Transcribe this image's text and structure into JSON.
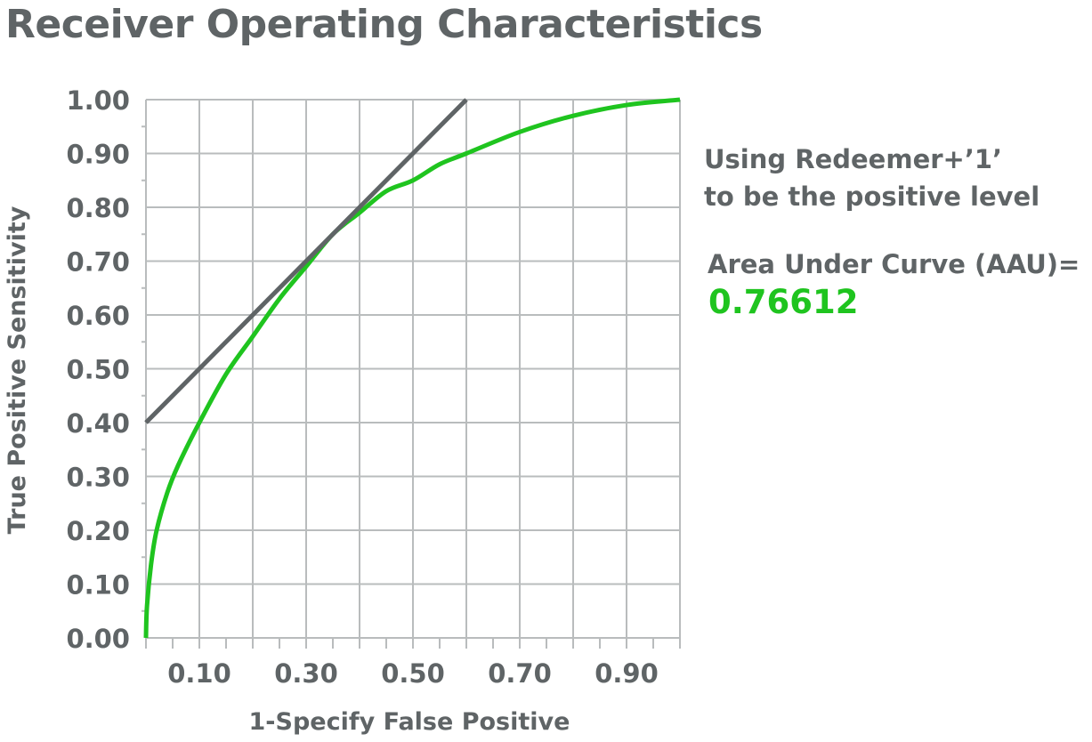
{
  "chart_data": {
    "type": "line",
    "title": "Receiver Operating Characteristics",
    "xlabel": "1-Specify False Positive",
    "ylabel": "True Positive Sensitivity",
    "xlim": [
      0,
      1
    ],
    "ylim": [
      0,
      1
    ],
    "grid": true,
    "x_ticks": [
      "0.10",
      "0.30",
      "0.50",
      "0.70",
      "0.90"
    ],
    "x_tick_values": [
      0.1,
      0.3,
      0.5,
      0.7,
      0.9
    ],
    "y_ticks": [
      "0.00",
      "0.10",
      "0.20",
      "0.30",
      "0.40",
      "0.50",
      "0.60",
      "0.70",
      "0.80",
      "0.90",
      "1.00"
    ],
    "y_tick_values": [
      0,
      0.1,
      0.2,
      0.3,
      0.4,
      0.5,
      0.6,
      0.7,
      0.8,
      0.9,
      1.0
    ],
    "series": [
      {
        "color": "#1fc41f",
        "x": [
          0,
          0.002,
          0.01,
          0.02,
          0.04,
          0.06,
          0.1,
          0.15,
          0.2,
          0.25,
          0.3,
          0.35,
          0.4,
          0.45,
          0.5,
          0.55,
          0.6,
          0.7,
          0.8,
          0.9,
          1.0
        ],
        "y": [
          0,
          0.06,
          0.14,
          0.2,
          0.27,
          0.32,
          0.4,
          0.49,
          0.56,
          0.63,
          0.69,
          0.75,
          0.79,
          0.83,
          0.85,
          0.88,
          0.9,
          0.94,
          0.97,
          0.99,
          1.0
        ]
      },
      {
        "color": "#5f6466",
        "x": [
          0,
          0.6
        ],
        "y": [
          0.4,
          1.0
        ]
      }
    ],
    "annotations": {
      "line1": "Using Redeemer+’1’",
      "line2": "to be the positive level",
      "line3": "Area Under Curve (AAU)=",
      "auc_value": "0.76612"
    }
  }
}
